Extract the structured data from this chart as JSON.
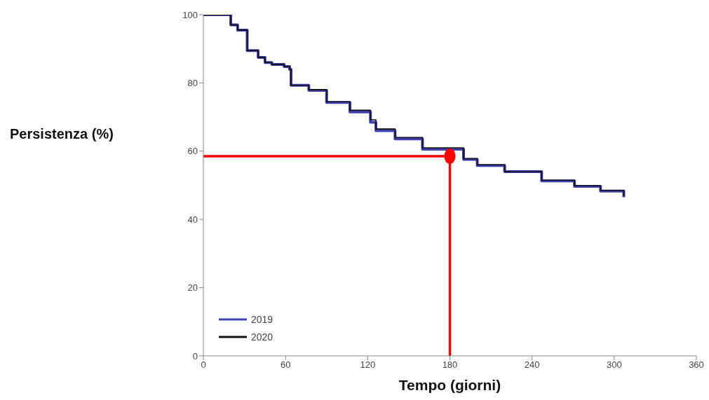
{
  "chart_data": {
    "type": "step",
    "xlabel": "Tempo (giorni)",
    "ylabel": "Persistenza (%)",
    "xlim": [
      0,
      360
    ],
    "xticks": [
      0,
      60,
      120,
      180,
      240,
      300,
      360
    ],
    "ylim": [
      0,
      100
    ],
    "yticks": [
      0,
      20,
      40,
      60,
      80,
      100
    ],
    "grid": false,
    "legend": "bottom left",
    "marker": "none",
    "line_style": "solid",
    "series": [
      {
        "name": "2019",
        "color": "#3f3fb0",
        "x": [
          0,
          14,
          20,
          25,
          31,
          32,
          40,
          45,
          50,
          59,
          63,
          64,
          77,
          90,
          107,
          122,
          126,
          140,
          160,
          190,
          200,
          220,
          247,
          271,
          290,
          307
        ],
        "values": [
          100,
          100,
          97,
          95.5,
          95.5,
          89.5,
          87.5,
          86,
          85.4,
          84.8,
          84,
          79.3,
          77.8,
          74.3,
          71.5,
          68.5,
          66,
          63.6,
          60.6,
          57.6,
          55.8,
          54,
          51.3,
          49.7,
          48.3,
          46.5
        ]
      },
      {
        "name": "2020",
        "color": "#111111",
        "x": [
          0,
          14,
          20,
          25,
          31,
          32,
          40,
          45,
          50,
          59,
          63,
          64,
          77,
          90,
          107,
          122,
          126,
          140,
          160,
          190,
          200,
          220,
          247,
          271,
          290,
          307
        ],
        "values": [
          100,
          100,
          97,
          95.5,
          95.5,
          89.5,
          87.5,
          86,
          85.4,
          84.8,
          84,
          79.3,
          78,
          74.5,
          72,
          69.2,
          66.5,
          64,
          61,
          57.8,
          56,
          54,
          51.5,
          49.9,
          48.5,
          46.8
        ]
      },
      {
        "type": "line",
        "color": "#ff0000",
        "x": [
          0,
          180,
          180
        ],
        "values": [
          58.5,
          58.5,
          0
        ]
      },
      {
        "type": "scatter",
        "marker": "circle",
        "color": "#ff0000",
        "x": [
          180
        ],
        "values": [
          58.5
        ]
      }
    ]
  }
}
